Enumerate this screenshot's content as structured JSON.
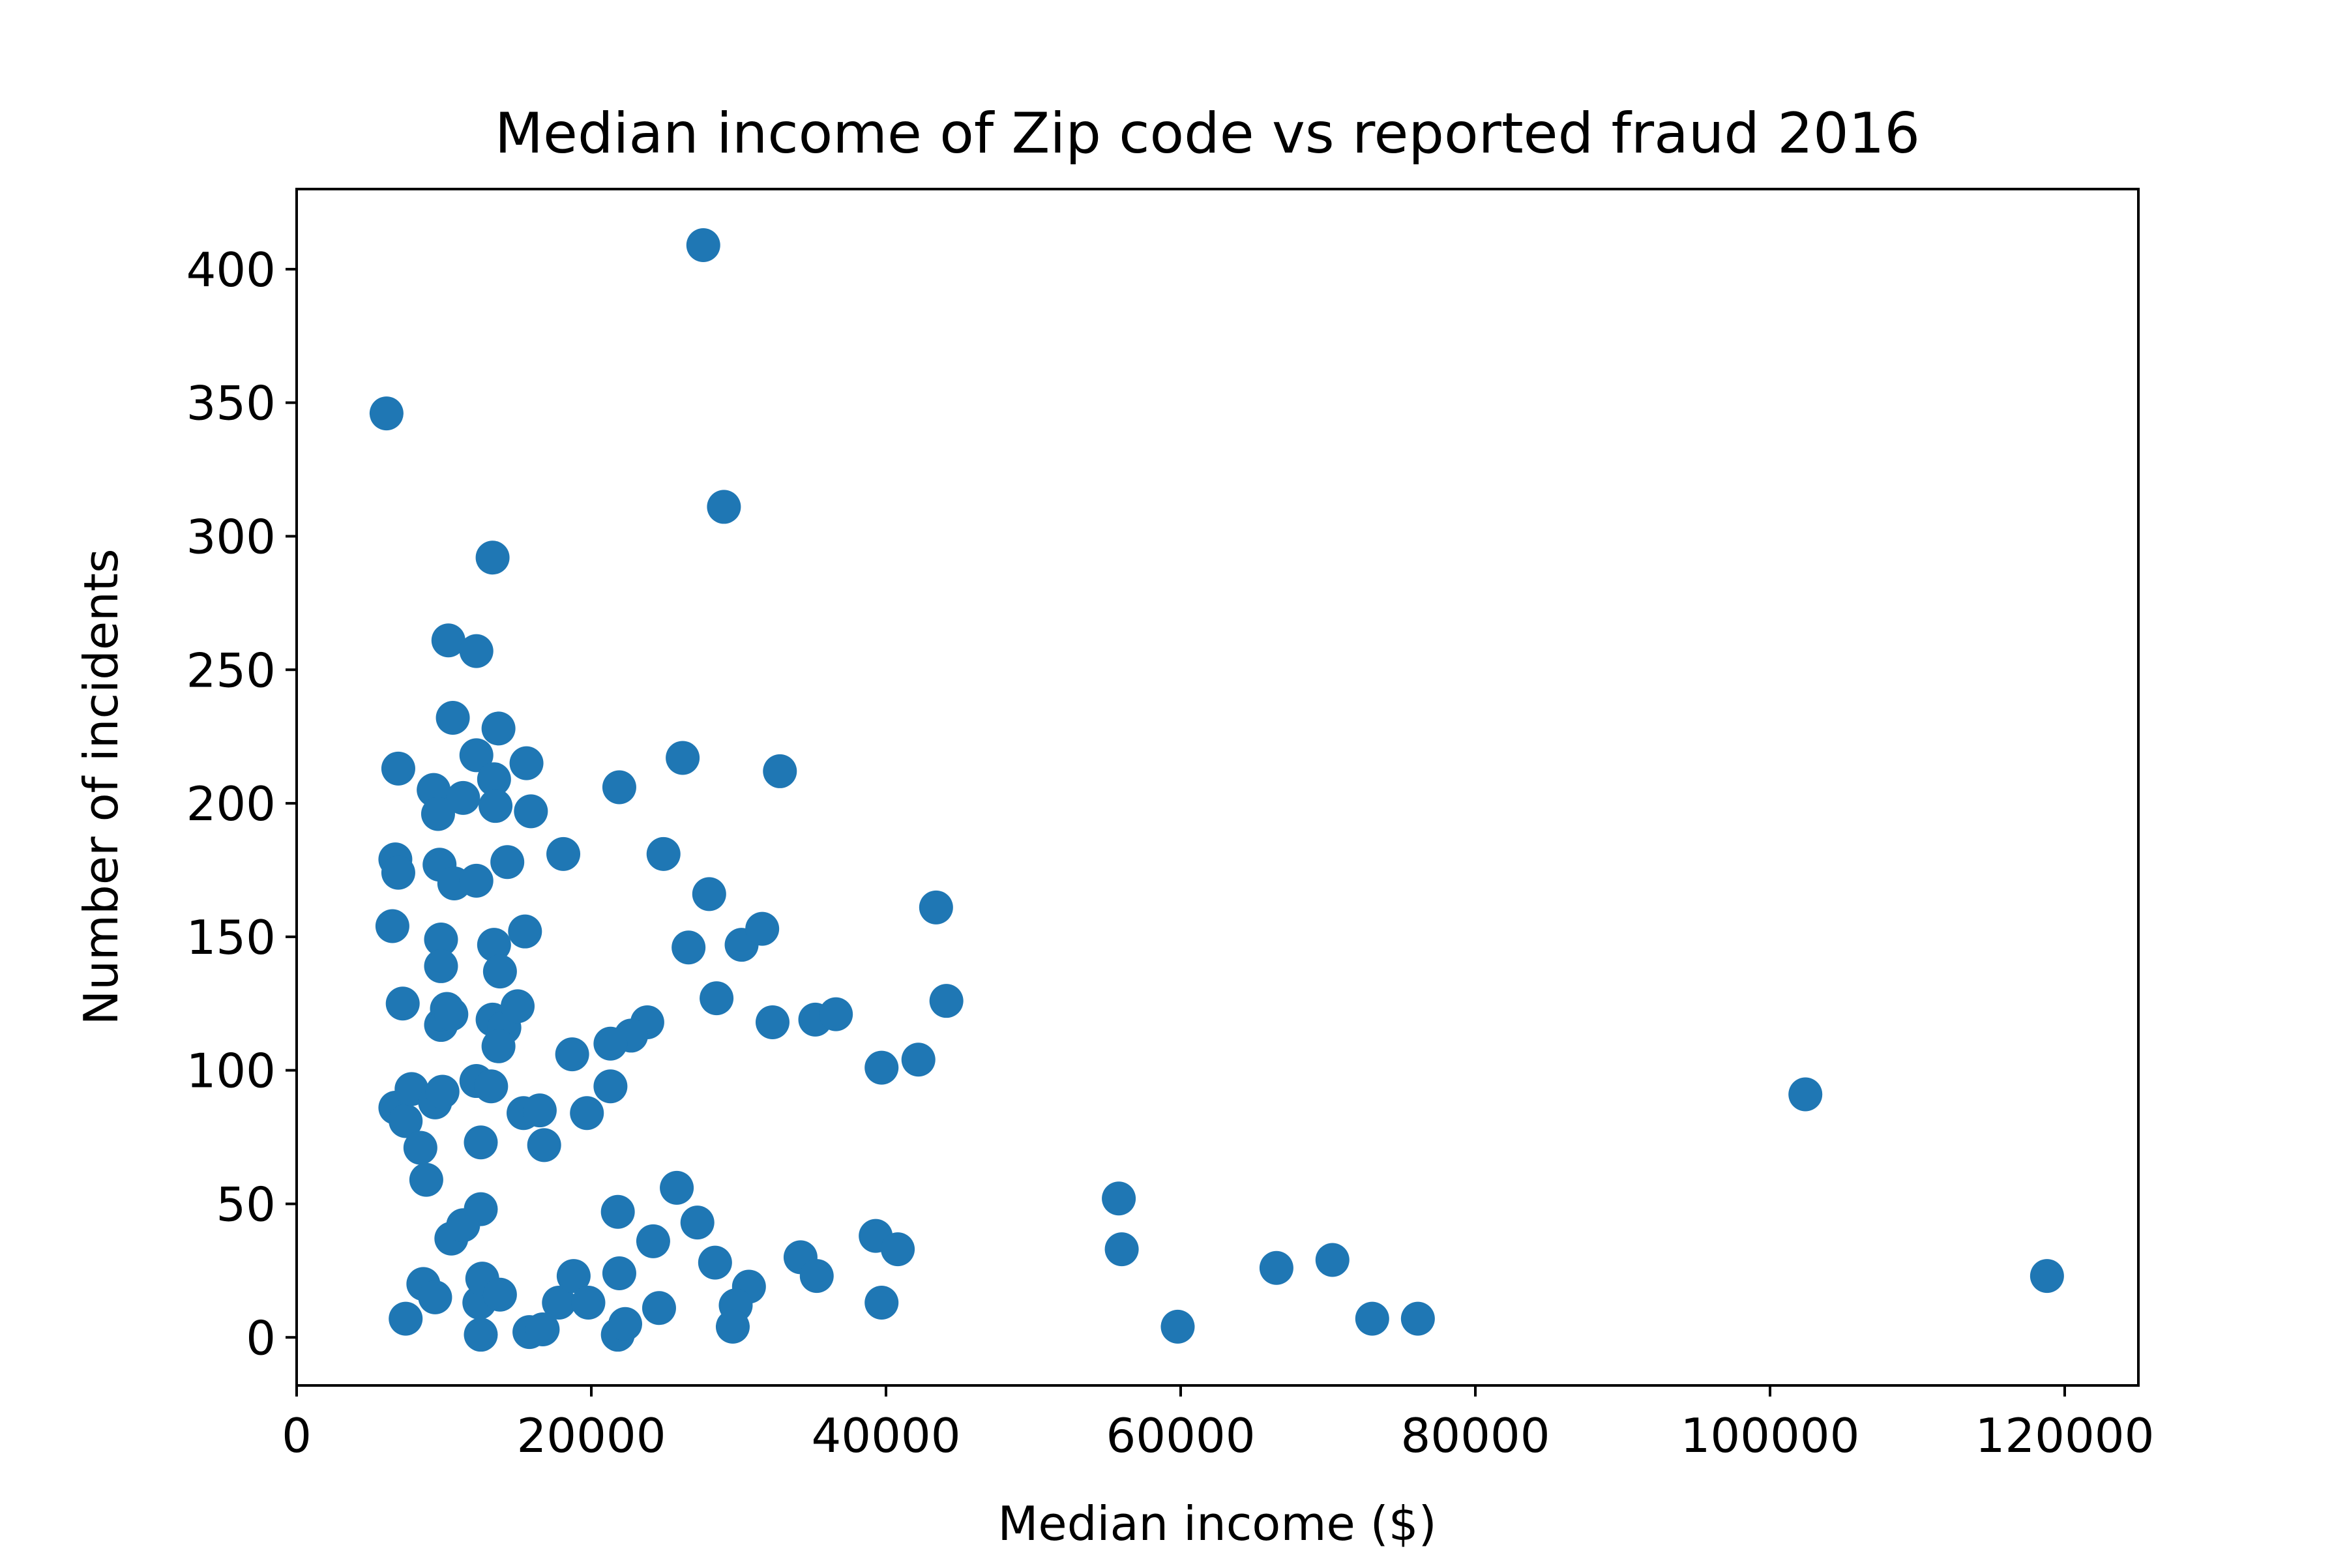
{
  "chart_data": {
    "type": "scatter",
    "title": "Median income of Zip code vs reported fraud 2016",
    "xlabel": "Median income ($)",
    "ylabel": "Number of incidents",
    "xlim": [
      0,
      125000
    ],
    "ylim": [
      -18,
      430
    ],
    "xticks": [
      0,
      20000,
      40000,
      60000,
      80000,
      100000,
      120000
    ],
    "xtick_labels": [
      "0",
      "20000",
      "40000",
      "60000",
      "80000",
      "100000",
      "120000"
    ],
    "yticks": [
      0,
      50,
      100,
      150,
      200,
      250,
      300,
      350,
      400
    ],
    "ytick_labels": [
      "0",
      "50",
      "100",
      "150",
      "200",
      "250",
      "300",
      "350",
      "400"
    ],
    "grid": false,
    "legend": "none",
    "marker_color": "#1f77b4",
    "points": [
      [
        6100,
        346
      ],
      [
        27600,
        409
      ],
      [
        29000,
        311
      ],
      [
        13300,
        292
      ],
      [
        10300,
        261
      ],
      [
        12200,
        257
      ],
      [
        10600,
        232
      ],
      [
        13700,
        228
      ],
      [
        6900,
        213
      ],
      [
        12200,
        218
      ],
      [
        15600,
        215
      ],
      [
        26200,
        217
      ],
      [
        32800,
        212
      ],
      [
        9300,
        205
      ],
      [
        11300,
        202
      ],
      [
        13400,
        209
      ],
      [
        13500,
        199
      ],
      [
        9600,
        196
      ],
      [
        15900,
        197
      ],
      [
        21900,
        206
      ],
      [
        6700,
        179
      ],
      [
        6900,
        174
      ],
      [
        9700,
        177
      ],
      [
        10700,
        170
      ],
      [
        12200,
        171
      ],
      [
        14300,
        178
      ],
      [
        18100,
        181
      ],
      [
        24900,
        181
      ],
      [
        28000,
        166
      ],
      [
        6500,
        154
      ],
      [
        9800,
        149
      ],
      [
        9800,
        139
      ],
      [
        13400,
        147
      ],
      [
        13800,
        137
      ],
      [
        15500,
        152
      ],
      [
        26600,
        146
      ],
      [
        30200,
        147
      ],
      [
        31600,
        153
      ],
      [
        43400,
        161
      ],
      [
        7200,
        125
      ],
      [
        9800,
        117
      ],
      [
        10200,
        123
      ],
      [
        10500,
        121
      ],
      [
        13300,
        119
      ],
      [
        14100,
        116
      ],
      [
        13700,
        109
      ],
      [
        15000,
        124
      ],
      [
        28500,
        127
      ],
      [
        32300,
        118
      ],
      [
        35200,
        119
      ],
      [
        36600,
        121
      ],
      [
        44100,
        126
      ],
      [
        23800,
        118
      ],
      [
        22700,
        113
      ],
      [
        21300,
        110
      ],
      [
        18700,
        106
      ],
      [
        39700,
        101
      ],
      [
        42200,
        104
      ],
      [
        6700,
        86
      ],
      [
        7400,
        81
      ],
      [
        7800,
        93
      ],
      [
        9400,
        88
      ],
      [
        9900,
        92
      ],
      [
        12200,
        96
      ],
      [
        13200,
        94
      ],
      [
        15400,
        84
      ],
      [
        16500,
        85
      ],
      [
        19700,
        84
      ],
      [
        21300,
        94
      ],
      [
        8400,
        71
      ],
      [
        12500,
        73
      ],
      [
        16800,
        72
      ],
      [
        102400,
        91
      ],
      [
        8800,
        59
      ],
      [
        25800,
        56
      ],
      [
        55800,
        52
      ],
      [
        12500,
        48
      ],
      [
        21800,
        47
      ],
      [
        27200,
        43
      ],
      [
        10500,
        37
      ],
      [
        11300,
        42
      ],
      [
        24200,
        36
      ],
      [
        39300,
        38
      ],
      [
        40800,
        33
      ],
      [
        56000,
        33
      ],
      [
        28400,
        28
      ],
      [
        34200,
        30
      ],
      [
        35300,
        23
      ],
      [
        66500,
        26
      ],
      [
        70300,
        29
      ],
      [
        118800,
        23
      ],
      [
        8600,
        20
      ],
      [
        9400,
        15
      ],
      [
        12400,
        13
      ],
      [
        12600,
        22
      ],
      [
        13800,
        16
      ],
      [
        17800,
        13
      ],
      [
        18800,
        23
      ],
      [
        19800,
        13
      ],
      [
        21900,
        24
      ],
      [
        24600,
        11
      ],
      [
        30700,
        19
      ],
      [
        29800,
        12
      ],
      [
        39700,
        13
      ],
      [
        7400,
        7
      ],
      [
        12500,
        1
      ],
      [
        15800,
        2
      ],
      [
        16700,
        3
      ],
      [
        21800,
        1
      ],
      [
        22300,
        5
      ],
      [
        29600,
        4
      ],
      [
        59800,
        4
      ],
      [
        73000,
        7
      ],
      [
        76100,
        7
      ]
    ]
  }
}
